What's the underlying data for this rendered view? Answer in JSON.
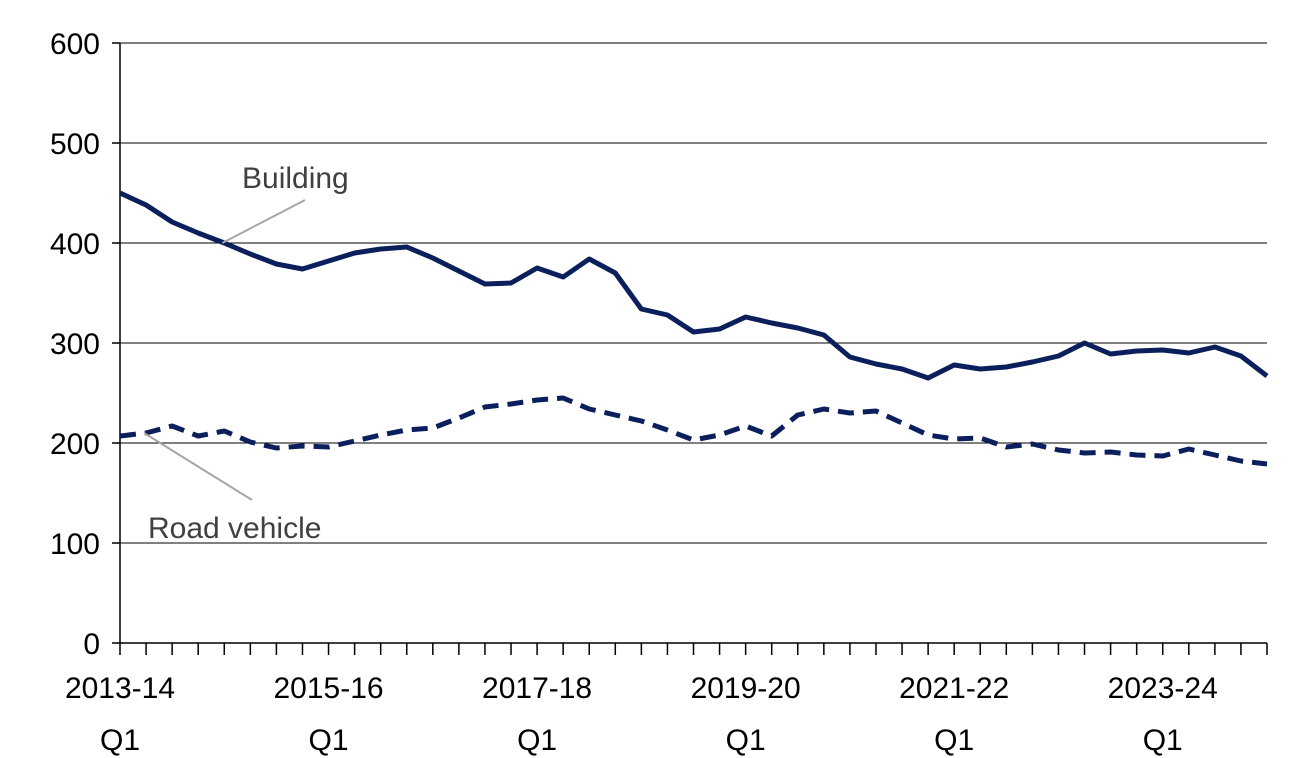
{
  "chart_data": {
    "type": "line",
    "categories": [
      "2013-14 Q1",
      null,
      null,
      null,
      null,
      null,
      null,
      null,
      "2015-16 Q1",
      null,
      null,
      null,
      null,
      null,
      null,
      null,
      "2017-18 Q1",
      null,
      null,
      null,
      null,
      null,
      null,
      null,
      "2019-20 Q1",
      null,
      null,
      null,
      null,
      null,
      null,
      null,
      "2021-22 Q1",
      null,
      null,
      null,
      null,
      null,
      null,
      null,
      "2023-24 Q1",
      null,
      null,
      null,
      null
    ],
    "series": [
      {
        "name": "Building",
        "color": "#0b1f5c",
        "style": "solid",
        "values": [
          450,
          438,
          421,
          410,
          400,
          389,
          379,
          374,
          382,
          390,
          394,
          396,
          385,
          372,
          359,
          360,
          375,
          366,
          384,
          370,
          334,
          328,
          311,
          314,
          326,
          320,
          315,
          308,
          286,
          279,
          274,
          265,
          278,
          274,
          276,
          281,
          287,
          300,
          289,
          292,
          293,
          290,
          296,
          287,
          267
        ]
      },
      {
        "name": "Road vehicle",
        "color": "#0b1f5c",
        "style": "dashed",
        "values": [
          207,
          210,
          217,
          207,
          212,
          201,
          195,
          197,
          196,
          202,
          208,
          213,
          215,
          225,
          236,
          239,
          243,
          245,
          234,
          228,
          222,
          213,
          203,
          208,
          217,
          207,
          228,
          234,
          230,
          232,
          220,
          208,
          204,
          205,
          196,
          199,
          193,
          190,
          191,
          188,
          187,
          194,
          188,
          182,
          179
        ]
      }
    ],
    "ylim": [
      0,
      600
    ],
    "yticks": [
      0,
      100,
      200,
      300,
      400,
      500,
      600
    ],
    "grid": true
  }
}
